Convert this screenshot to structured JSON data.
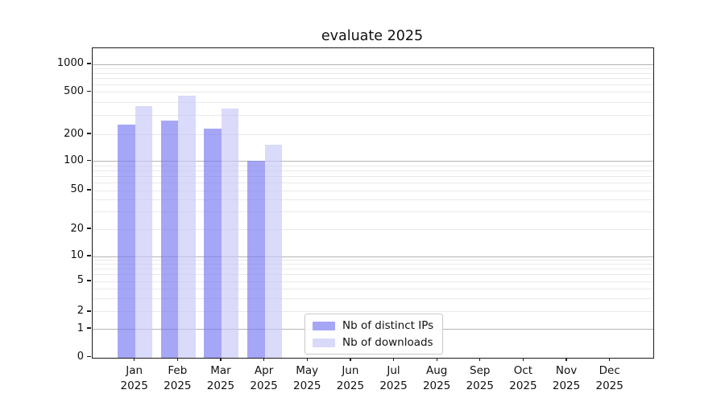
{
  "title": "evaluate 2025",
  "legend": {
    "items": [
      {
        "label": "Nb of distinct IPs",
        "color": "#a6a6f7"
      },
      {
        "label": "Nb of downloads",
        "color": "#d9d9f9"
      }
    ]
  },
  "chart_data": {
    "type": "bar",
    "title": "evaluate 2025",
    "categories": [
      "Jan 2025",
      "Feb 2025",
      "Mar 2025",
      "Apr 2025",
      "May 2025",
      "Jun 2025",
      "Jul 2025",
      "Aug 2025",
      "Sep 2025",
      "Oct 2025",
      "Nov 2025",
      "Dec 2025"
    ],
    "series": [
      {
        "name": "Nb of distinct IPs",
        "color": "rgba(118,118,243,0.65)",
        "swatch": "#a6a6f7",
        "values": [
          245,
          270,
          225,
          102,
          null,
          null,
          null,
          null,
          null,
          null,
          null,
          null
        ]
      },
      {
        "name": "Nb of downloads",
        "color": "rgba(198,198,247,0.65)",
        "swatch": "#d9d9f9",
        "values": [
          370,
          460,
          348,
          152,
          null,
          null,
          null,
          null,
          null,
          null,
          null,
          null
        ]
      }
    ],
    "xlabel": "",
    "ylabel": "",
    "yscale": "symlog",
    "yticks": [
      0,
      1,
      2,
      5,
      10,
      20,
      50,
      100,
      200,
      500,
      1000
    ],
    "minor_gridline_values": [
      2,
      3,
      4,
      5,
      6,
      7,
      8,
      9,
      20,
      30,
      40,
      50,
      60,
      70,
      80,
      90,
      200,
      300,
      400,
      500,
      600,
      700,
      800,
      900
    ],
    "major_gridline_values": [
      1,
      10,
      100,
      1000
    ],
    "grid": "horizontal, major + minor",
    "legend_position": "lower center inside axes",
    "colors": {
      "major_grid": "#b4b4b4",
      "minor_grid": "#e9e9e9",
      "spine": "#1c1c1c",
      "text": "#111111"
    }
  }
}
